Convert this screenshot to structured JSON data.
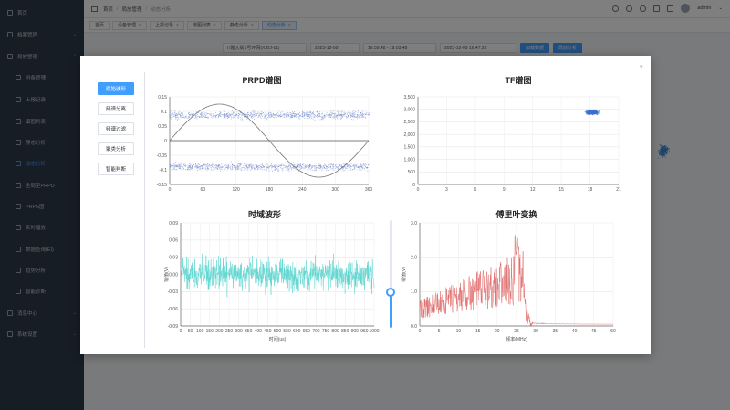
{
  "sidebar": {
    "items": [
      {
        "label": "首页",
        "type": "top"
      },
      {
        "label": "档案管理",
        "type": "top",
        "caret": "⌄"
      },
      {
        "label": "局放管理",
        "type": "top",
        "caret": "⌃"
      },
      {
        "label": "设备管理",
        "type": "sub"
      },
      {
        "label": "上报记录",
        "type": "sub"
      },
      {
        "label": "谱图列表",
        "type": "sub"
      },
      {
        "label": "静态分析",
        "type": "sub"
      },
      {
        "label": "动态分析",
        "type": "sub",
        "active": true
      },
      {
        "label": "全局型PRPD",
        "type": "sub"
      },
      {
        "label": "PRPS图",
        "type": "sub"
      },
      {
        "label": "实时播放",
        "type": "sub"
      },
      {
        "label": "数据查询(EI)",
        "type": "sub"
      },
      {
        "label": "趋势分析",
        "type": "sub"
      },
      {
        "label": "智能诊断",
        "type": "sub"
      },
      {
        "label": "消息中心",
        "type": "top",
        "caret": "⌄"
      },
      {
        "label": "系统设置",
        "type": "top",
        "caret": "⌄"
      }
    ]
  },
  "header": {
    "breadcrumb": [
      "首页",
      "局放管理",
      "动态分析"
    ],
    "user": "admin"
  },
  "tabs": [
    {
      "label": "首页",
      "closable": false
    },
    {
      "label": "设备管理",
      "closable": true
    },
    {
      "label": "上报记录",
      "closable": true
    },
    {
      "label": "谱图列表",
      "closable": true
    },
    {
      "label": "静态分析",
      "closable": true
    },
    {
      "label": "动态分析",
      "closable": true,
      "active": true
    }
  ],
  "filter": {
    "device": "H隆大街1号环网(X.DJ-11)",
    "date": "2023-12-09",
    "time_range": "16:59:48 - 19:03:48",
    "datetime": "2023-12-09 16:47:23",
    "btn_export": "加载数据",
    "btn_analyze": "局放分析"
  },
  "dialog": {
    "close": "×",
    "menu": [
      {
        "label": "原始波形",
        "active": true
      },
      {
        "label": "频谱分离",
        "active": false
      },
      {
        "label": "频谱过滤",
        "active": false
      },
      {
        "label": "聚类分析",
        "active": false
      },
      {
        "label": "智能判断",
        "active": false
      }
    ],
    "slider_level": 0.3
  },
  "colors": {
    "accent": "#409eff",
    "prpd_points": "#6f87c9",
    "tf_points": "#3d6fd1",
    "time_wave": "#5ed6d0",
    "fft_wave": "#e06b6b",
    "sine": "#777777"
  },
  "chart_data": [
    {
      "type": "scatter",
      "title": "PRPD谱图",
      "x_ticks": [
        0,
        60,
        120,
        180,
        240,
        300,
        360
      ],
      "y_ticks": [
        0.15,
        0.1,
        0.05,
        0,
        -0.05,
        -0.1,
        -0.15
      ],
      "xlim": [
        0,
        360
      ],
      "ylim": [
        -0.15,
        0.15
      ],
      "bands": [
        {
          "y_center": 0.088,
          "spread": 0.012
        },
        {
          "y_center": -0.088,
          "spread": 0.012
        }
      ],
      "sine_amplitude": 0.125
    },
    {
      "type": "scatter",
      "title": "TF谱图",
      "x_ticks": [
        0,
        3,
        6,
        9,
        12,
        15,
        18,
        21
      ],
      "y_ticks": [
        "3,500",
        "3,000",
        "2,500",
        "2,000",
        "1,500",
        "1,000",
        "500",
        "0"
      ],
      "xlim": [
        0,
        21
      ],
      "ylim": [
        0,
        3500
      ],
      "cluster": {
        "x_center": 18.2,
        "y_center": 2900,
        "x_spread": 1.2,
        "y_spread": 130
      }
    },
    {
      "type": "line",
      "title": "时域波形",
      "xlabel": "时间(us)",
      "ylabel": "幅值(V)",
      "x_ticks": [
        0,
        50,
        100,
        150,
        200,
        250,
        300,
        350,
        400,
        450,
        500,
        550,
        600,
        650,
        700,
        750,
        800,
        850,
        900,
        950,
        1000
      ],
      "y_ticks": [
        "0.09",
        "0.06",
        "0.03",
        "0.00",
        "-0.03",
        "-0.06",
        "-0.09"
      ],
      "xlim": [
        0,
        1000
      ],
      "ylim": [
        -0.09,
        0.09
      ]
    },
    {
      "type": "line",
      "title": "傅里叶变换",
      "xlabel": "频率(MHz)",
      "ylabel": "幅值(V)",
      "x_ticks": [
        0,
        5,
        10,
        15,
        20,
        25,
        30,
        35,
        40,
        45,
        50
      ],
      "y_ticks": [
        "3.0",
        "2.0",
        "1.0",
        "0.0"
      ],
      "xlim": [
        0,
        50
      ],
      "ylim": [
        0,
        3.0
      ]
    }
  ]
}
